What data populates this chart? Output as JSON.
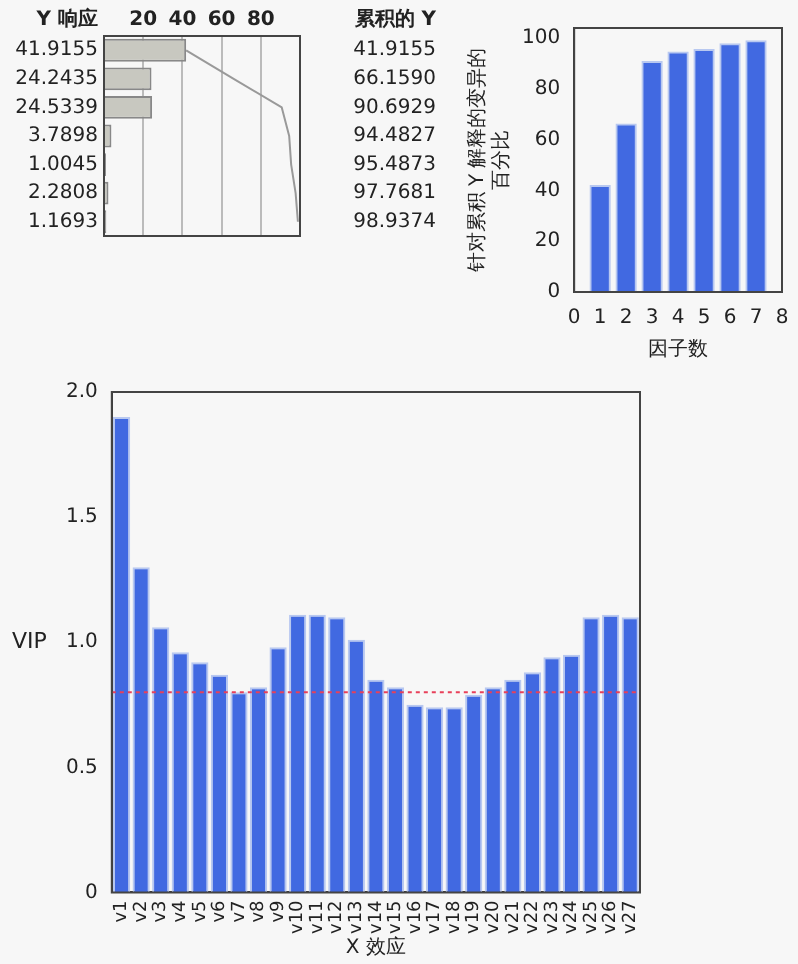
{
  "chart_data": [
    {
      "type": "bar",
      "orientation": "horizontal",
      "categories": [
        null,
        null,
        null,
        null,
        null,
        null,
        null
      ],
      "xlim": [
        0,
        100
      ],
      "xticks": [
        20,
        40,
        60,
        80
      ],
      "grid": "x",
      "legend": false,
      "annotations": [
        "Y 响应",
        "累积的 Y"
      ],
      "series": [
        {
          "type": "bar",
          "color": "#c8c8c0",
          "values": [
            41.9155,
            24.2435,
            24.5339,
            3.7898,
            1.0045,
            2.2808,
            1.1693
          ],
          "value_labels": [
            "41.9155",
            "24.2435",
            "24.5339",
            "3.7898",
            "1.0045",
            "2.2808",
            "1.1693"
          ]
        },
        {
          "type": "line",
          "color": "#999999",
          "marker": "none",
          "values": [
            41.9155,
            66.159,
            90.6929,
            94.4827,
            95.4873,
            97.7681,
            98.9374
          ],
          "value_labels": [
            "41.9155",
            "66.1590",
            "90.6929",
            "94.4827",
            "95.4873",
            "97.7681",
            "98.9374"
          ]
        }
      ]
    },
    {
      "type": "bar",
      "x": [
        1,
        2,
        3,
        4,
        5,
        6,
        7
      ],
      "values": [
        41.9155,
        66.159,
        90.6929,
        94.4827,
        95.4873,
        97.7681,
        98.9374
      ],
      "color": "#4169e1",
      "xlim": [
        0,
        8
      ],
      "xticks": [
        0,
        1,
        2,
        3,
        4,
        5,
        6,
        7,
        8
      ],
      "ylim": [
        0,
        104
      ],
      "yticks": [
        0,
        20,
        40,
        60,
        80,
        100
      ],
      "xlabel": "因子数",
      "ylabel": "针对累积 Y 解释的变异的百分比",
      "grid": false,
      "legend": false
    },
    {
      "type": "bar",
      "categories": [
        "v1",
        "v2",
        "v3",
        "v4",
        "v5",
        "v6",
        "v7",
        "v8",
        "v9",
        "v10",
        "v11",
        "v12",
        "v13",
        "v14",
        "v15",
        "v16",
        "v17",
        "v18",
        "v19",
        "v20",
        "v21",
        "v22",
        "v23",
        "v24",
        "v25",
        "v26",
        "v27"
      ],
      "values": [
        1.9,
        1.3,
        1.06,
        0.96,
        0.92,
        0.87,
        0.8,
        0.82,
        0.98,
        1.11,
        1.11,
        1.1,
        1.01,
        0.85,
        0.82,
        0.75,
        0.74,
        0.74,
        0.79,
        0.82,
        0.85,
        0.88,
        0.94,
        0.95,
        1.1,
        1.11,
        1.1
      ],
      "color": "#4169e1",
      "ylim": [
        0,
        2
      ],
      "yticks": [
        0,
        {
          "value": 0.5,
          "label": "0.5"
        },
        {
          "value": 1,
          "label": "1.0"
        },
        {
          "value": 1.5,
          "label": "1.5"
        },
        {
          "value": 2,
          "label": "2.0"
        }
      ],
      "xlabel": "X 效应",
      "ylabel": "VIP",
      "grid": false,
      "legend": false,
      "ref_lines": [
        {
          "axis": "y",
          "value": 0.8,
          "color": "#e8405a",
          "line_style": "dotted"
        }
      ]
    }
  ]
}
